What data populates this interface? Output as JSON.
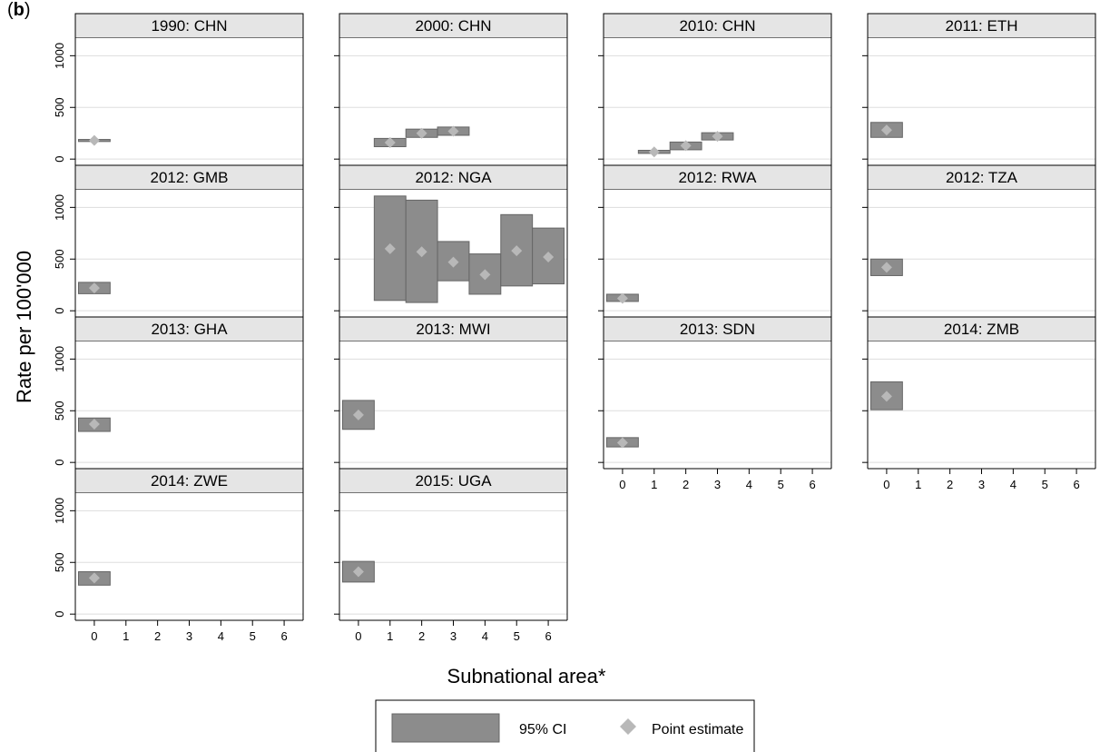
{
  "figure_label": "b",
  "ylabel": "Rate per 100'000",
  "xlabel": "Subnational area*",
  "legend": {
    "ci": "95% CI",
    "point": "Point estimate"
  },
  "colors": {
    "ci_fill": "#8c8c8c",
    "ci_stroke": "#666666",
    "point": "#b8b8b8",
    "header": "#e5e5e5",
    "grid": "#dddddd"
  },
  "chart_data": {
    "type": "bar",
    "layout": "small-multiples",
    "x_ticks": [
      0,
      1,
      2,
      3,
      4,
      5,
      6
    ],
    "y_ticks": [
      0,
      500,
      1000
    ],
    "xlim": [
      -0.6,
      6.6
    ],
    "ylim": [
      -60,
      1170
    ],
    "grid": true,
    "legend_position": "bottom",
    "panels": [
      {
        "title": "1990: CHN",
        "areas": [
          {
            "x": 0,
            "est": 180,
            "lo": 170,
            "hi": 190
          }
        ]
      },
      {
        "title": "2000: CHN",
        "areas": [
          {
            "x": 1,
            "est": 160,
            "lo": 120,
            "hi": 200
          },
          {
            "x": 2,
            "est": 250,
            "lo": 210,
            "hi": 290
          },
          {
            "x": 3,
            "est": 270,
            "lo": 230,
            "hi": 310
          }
        ]
      },
      {
        "title": "2010: CHN",
        "areas": [
          {
            "x": 1,
            "est": 70,
            "lo": 55,
            "hi": 85
          },
          {
            "x": 2,
            "est": 130,
            "lo": 90,
            "hi": 165
          },
          {
            "x": 3,
            "est": 220,
            "lo": 185,
            "hi": 255
          }
        ]
      },
      {
        "title": "2011: ETH",
        "areas": [
          {
            "x": 0,
            "est": 280,
            "lo": 210,
            "hi": 355
          }
        ]
      },
      {
        "title": "2012: GMB",
        "areas": [
          {
            "x": 0,
            "est": 220,
            "lo": 165,
            "hi": 275
          }
        ]
      },
      {
        "title": "2012: NGA",
        "areas": [
          {
            "x": 1,
            "est": 600,
            "lo": 100,
            "hi": 1110
          },
          {
            "x": 2,
            "est": 570,
            "lo": 80,
            "hi": 1070
          },
          {
            "x": 3,
            "est": 470,
            "lo": 290,
            "hi": 670
          },
          {
            "x": 4,
            "est": 350,
            "lo": 160,
            "hi": 550
          },
          {
            "x": 5,
            "est": 580,
            "lo": 240,
            "hi": 930
          },
          {
            "x": 6,
            "est": 520,
            "lo": 260,
            "hi": 800
          }
        ]
      },
      {
        "title": "2012: RWA",
        "areas": [
          {
            "x": 0,
            "est": 120,
            "lo": 90,
            "hi": 160
          }
        ]
      },
      {
        "title": "2012: TZA",
        "areas": [
          {
            "x": 0,
            "est": 420,
            "lo": 340,
            "hi": 500
          }
        ]
      },
      {
        "title": "2013: GHA",
        "areas": [
          {
            "x": 0,
            "est": 370,
            "lo": 300,
            "hi": 430
          }
        ]
      },
      {
        "title": "2013: MWI",
        "areas": [
          {
            "x": 0,
            "est": 460,
            "lo": 320,
            "hi": 600
          }
        ]
      },
      {
        "title": "2013: SDN",
        "areas": [
          {
            "x": 0,
            "est": 190,
            "lo": 150,
            "hi": 240
          }
        ]
      },
      {
        "title": "2014: ZMB",
        "areas": [
          {
            "x": 0,
            "est": 640,
            "lo": 510,
            "hi": 780
          }
        ]
      },
      {
        "title": "2014: ZWE",
        "areas": [
          {
            "x": 0,
            "est": 350,
            "lo": 280,
            "hi": 410
          }
        ]
      },
      {
        "title": "2015: UGA",
        "areas": [
          {
            "x": 0,
            "est": 410,
            "lo": 310,
            "hi": 510
          }
        ]
      }
    ]
  }
}
